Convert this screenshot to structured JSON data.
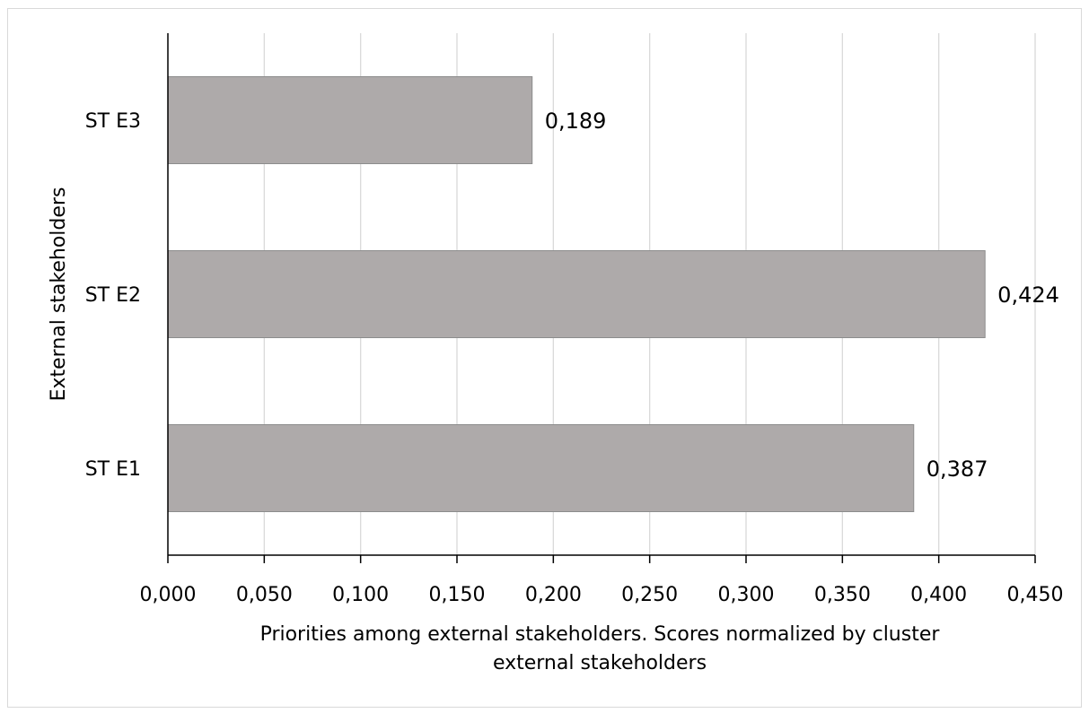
{
  "chart_data": {
    "type": "bar",
    "orientation": "horizontal",
    "categories": [
      "ST E1",
      "ST E2",
      "ST E3"
    ],
    "values": [
      0.387,
      0.424,
      0.189
    ],
    "data_labels": [
      "0,387",
      "0,424",
      "0,189"
    ],
    "xlim": [
      0,
      0.45
    ],
    "x_ticks": [
      0,
      0.05,
      0.1,
      0.15,
      0.2,
      0.25,
      0.3,
      0.35,
      0.4,
      0.45
    ],
    "x_tick_labels": [
      "0,000",
      "0,050",
      "0,100",
      "0,150",
      "0,200",
      "0,250",
      "0,300",
      "0,350",
      "0,400",
      "0,450"
    ],
    "xlabel_lines": [
      "Priorities among external stakeholders. Scores normalized by cluster",
      "external stakeholders"
    ],
    "ylabel": "External stakeholders",
    "grid": "vertical",
    "bar_color": "#aeaaaa",
    "bar_edge_color": "#8c8c8c",
    "grid_color": "#d9d9d9",
    "axis_color": "#000000"
  }
}
